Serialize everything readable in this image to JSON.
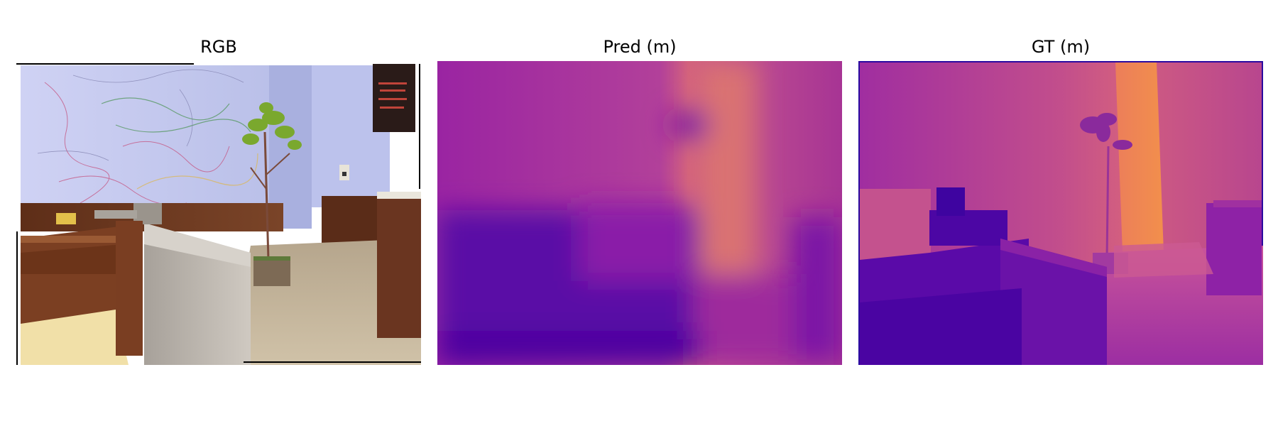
{
  "figure": {
    "panels": [
      {
        "title": "RGB",
        "content": "indoor office scene photo"
      },
      {
        "title": "Pred (m)",
        "content": "predicted depth map, plasma colormap"
      },
      {
        "title": "GT (m)",
        "content": "ground-truth depth map, plasma colormap"
      }
    ],
    "colormap": "plasma",
    "colors": {
      "background": "#ffffff",
      "wall": "#c9cdf0",
      "wood": "#6e3a22",
      "floor": "#bfae94",
      "counter": "#b9b2a8",
      "plant": "#6f9a2a",
      "plasma_near": "#4a03a0",
      "plasma_mid": "#b23a96",
      "plasma_far": "#f08a4b"
    }
  }
}
